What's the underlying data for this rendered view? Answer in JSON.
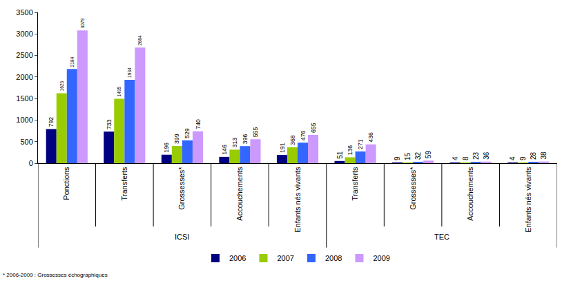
{
  "chart_data": {
    "type": "bar",
    "categories": [
      "Ponctions",
      "Transferts",
      "Grossesses*",
      "Accouchements",
      "Enfants nés vivants",
      "Transferts",
      "Grossesses*",
      "Accouchements",
      "Enfants nés vivants"
    ],
    "groups": [
      "ICSI",
      "ICSI",
      "ICSI",
      "ICSI",
      "ICSI",
      "TEC",
      "TEC",
      "TEC",
      "TEC"
    ],
    "series": [
      {
        "name": "2006",
        "color": "#000080",
        "values": [
          792,
          733,
          196,
          146,
          191,
          51,
          9,
          4,
          4
        ]
      },
      {
        "name": "2007",
        "color": "#99CC00",
        "values": [
          1623,
          1495,
          399,
          313,
          368,
          136,
          15,
          8,
          9
        ]
      },
      {
        "name": "2008",
        "color": "#3366FF",
        "values": [
          2184,
          1934,
          529,
          396,
          476,
          271,
          32,
          23,
          28
        ]
      },
      {
        "name": "2009",
        "color": "#CC99FF",
        "values": [
          3079,
          2684,
          740,
          555,
          655,
          436,
          59,
          36,
          38
        ]
      }
    ],
    "ylim": [
      0,
      3500
    ],
    "yticks": [
      0,
      500,
      1000,
      1500,
      2000,
      2500,
      3000,
      3500
    ],
    "grid": false,
    "legend": "bottom",
    "data_labels": true,
    "annotations": [
      "* 2006-2009 : Grossesses échographiques"
    ]
  }
}
